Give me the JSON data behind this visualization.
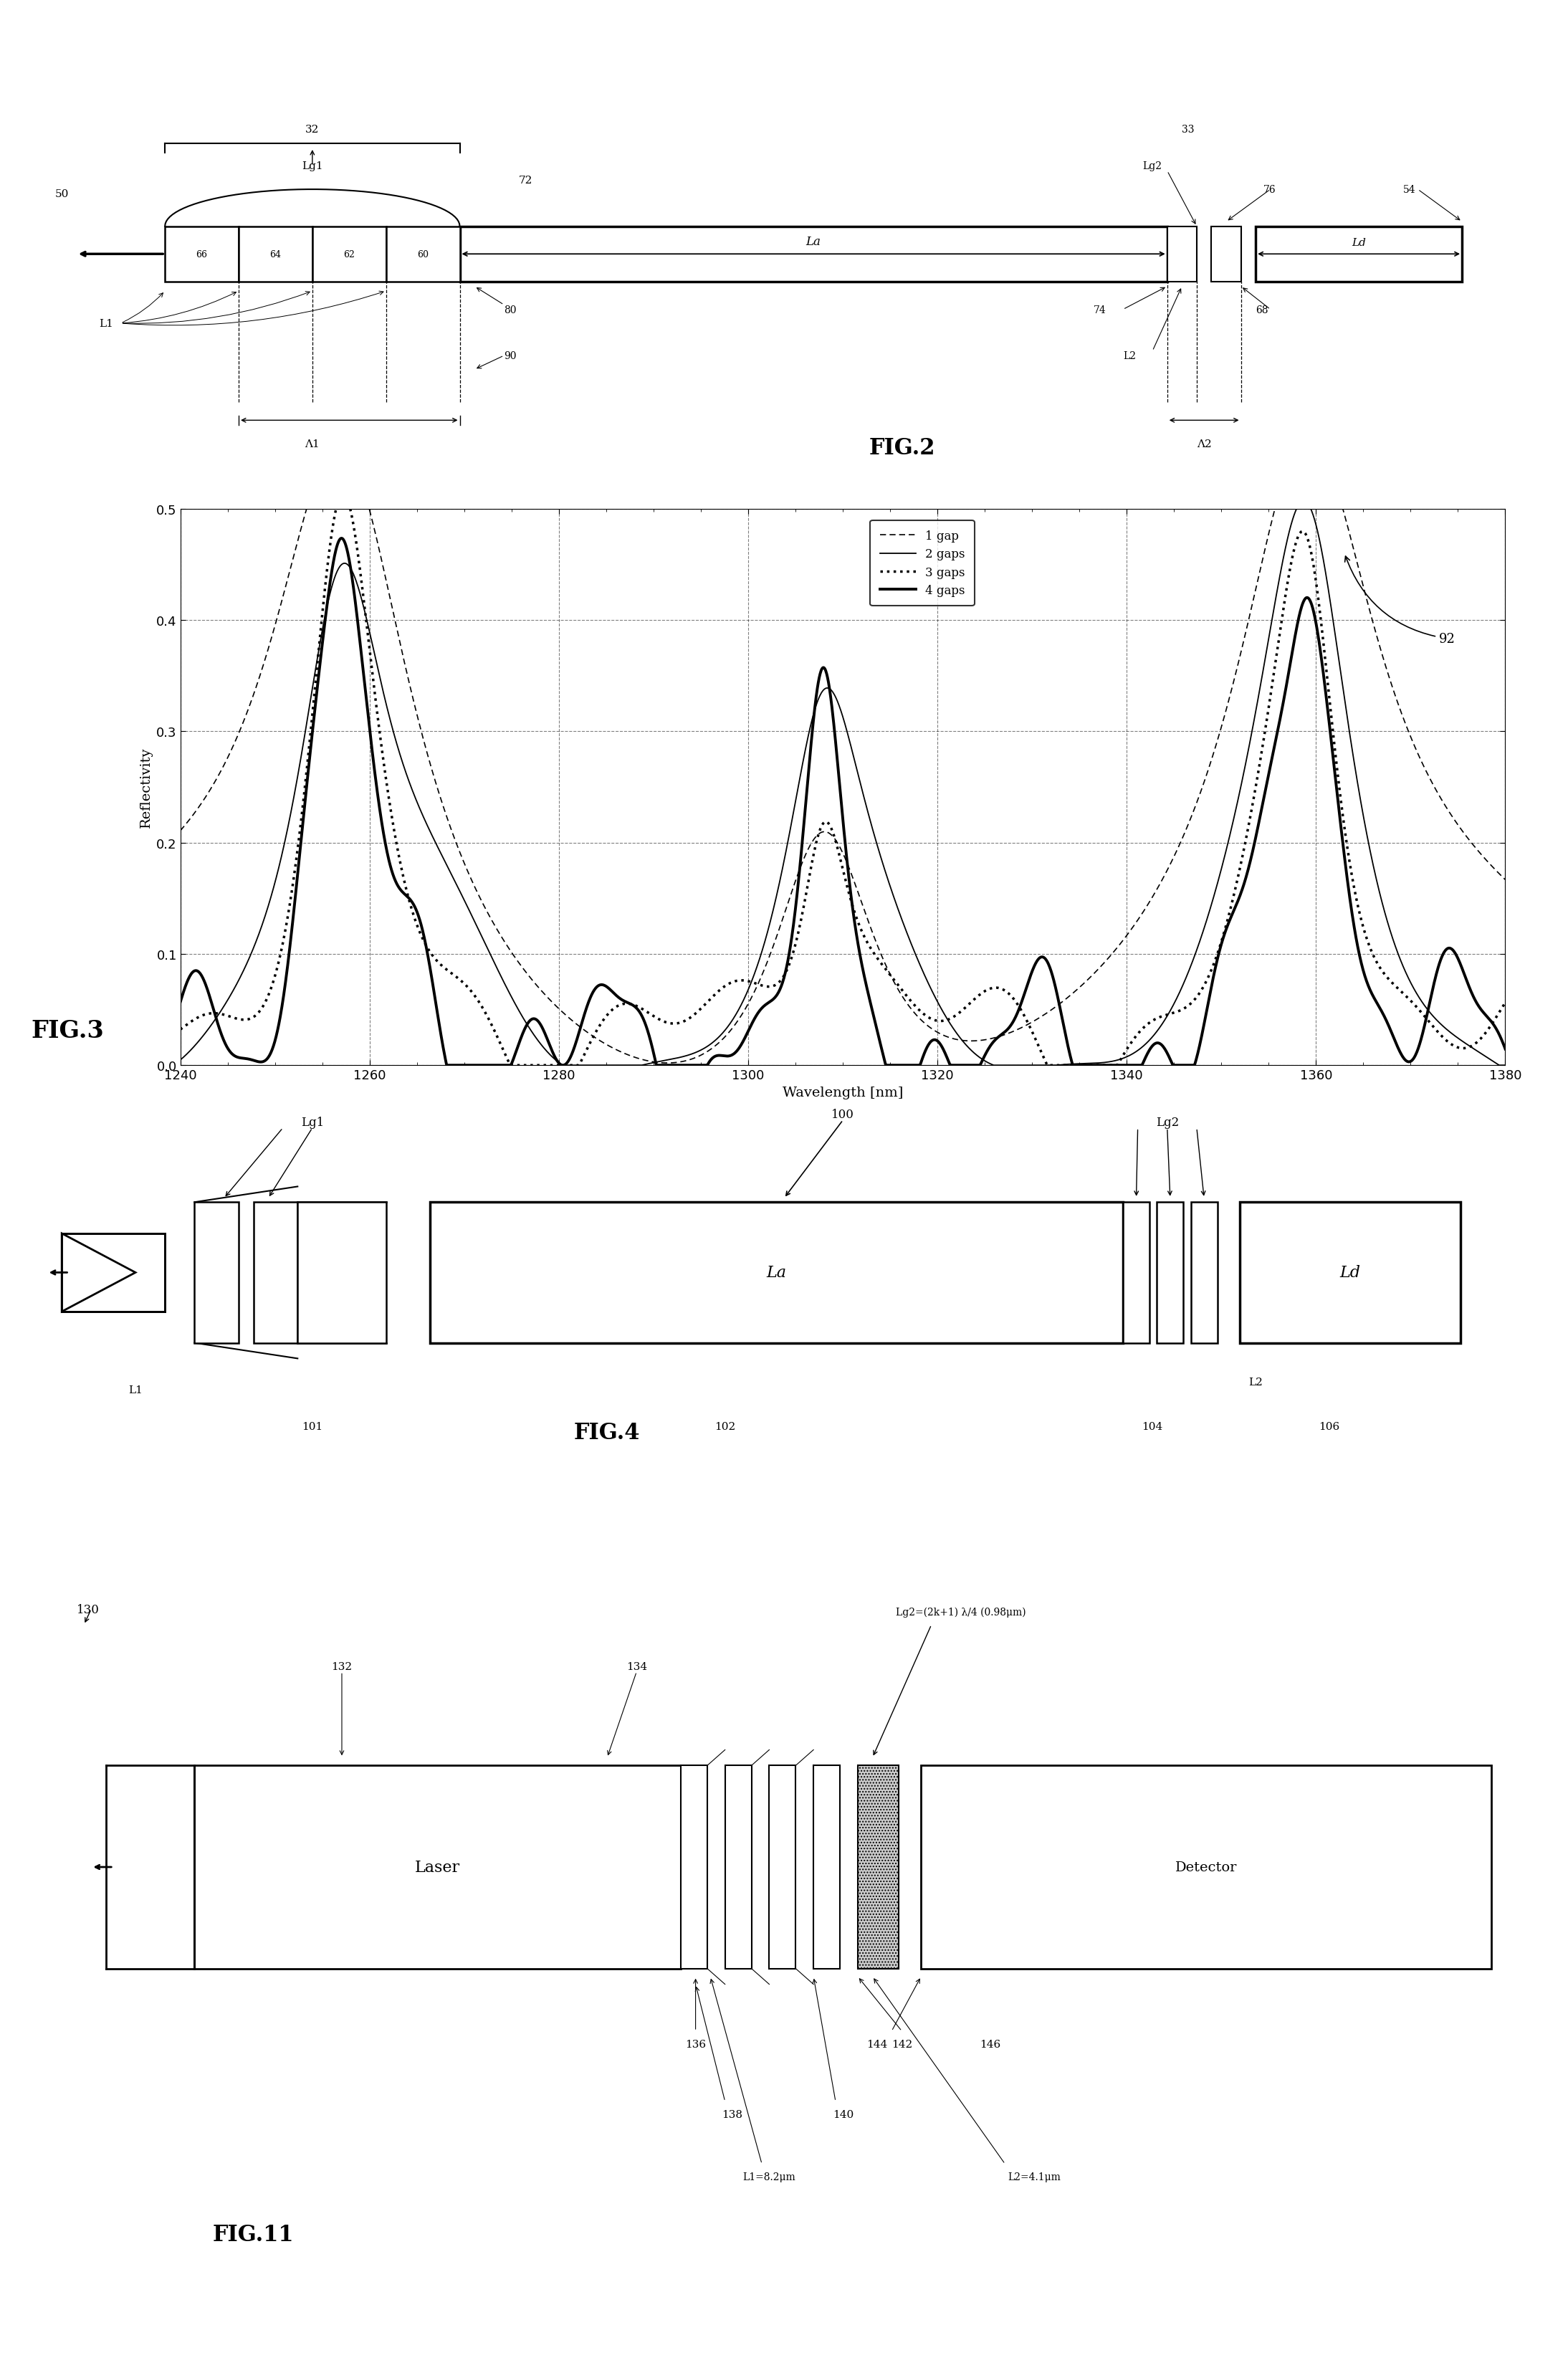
{
  "fig_width": 21.88,
  "fig_height": 33.05,
  "bg_color": "#ffffff",
  "fig3": {
    "xlabel": "Wavelength [nm]",
    "ylabel": "Reflectivity",
    "xlim": [
      1240,
      1380
    ],
    "ylim": [
      0.0,
      0.5
    ],
    "yticks": [
      0.0,
      0.1,
      0.2,
      0.3,
      0.4,
      0.5
    ],
    "xticks": [
      1240,
      1260,
      1280,
      1300,
      1320,
      1340,
      1360,
      1380
    ],
    "legend_labels": [
      "1 gap",
      "2 gaps",
      "3 gaps",
      "4 gaps"
    ]
  }
}
